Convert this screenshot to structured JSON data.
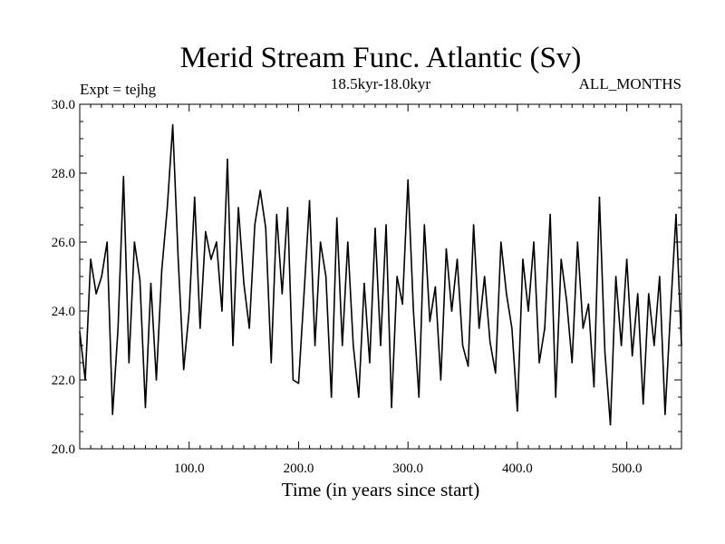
{
  "chart_data": {
    "type": "line",
    "title": "Merid Stream Func. Atlantic (Sv)",
    "subtitle": "18.5kyr-18.0kyr",
    "left_label": "Expt = tejhg",
    "right_label": "ALL_MONTHS",
    "xlabel": "Time (in years since start)",
    "ylabel": "",
    "xlim": [
      0,
      550
    ],
    "ylim": [
      20,
      30
    ],
    "x_ticks": [
      100,
      200,
      300,
      400,
      500
    ],
    "x_tick_labels": [
      "100.0",
      "200.0",
      "300.0",
      "400.0",
      "500.0"
    ],
    "y_ticks": [
      20,
      22,
      24,
      26,
      28,
      30
    ],
    "y_tick_labels": [
      "20.0",
      "22.0",
      "24.0",
      "26.0",
      "28.0",
      "30.0"
    ],
    "grid": false,
    "line_color": "#000000",
    "series": [
      {
        "name": "Merid Stream Func. Atlantic",
        "x": [
          0,
          5,
          10,
          15,
          20,
          25,
          30,
          35,
          40,
          45,
          50,
          55,
          60,
          65,
          70,
          75,
          80,
          85,
          90,
          95,
          100,
          105,
          110,
          115,
          120,
          125,
          130,
          135,
          140,
          145,
          150,
          155,
          160,
          165,
          170,
          175,
          180,
          185,
          190,
          195,
          200,
          205,
          210,
          215,
          220,
          225,
          230,
          235,
          240,
          245,
          250,
          255,
          260,
          265,
          270,
          275,
          280,
          285,
          290,
          295,
          300,
          305,
          310,
          315,
          320,
          325,
          330,
          335,
          340,
          345,
          350,
          355,
          360,
          365,
          370,
          375,
          380,
          385,
          390,
          395,
          400,
          405,
          410,
          415,
          420,
          425,
          430,
          435,
          440,
          445,
          450,
          455,
          460,
          465,
          470,
          475,
          480,
          485,
          490,
          495,
          500,
          505,
          510,
          515,
          520,
          525,
          530,
          535,
          540,
          545,
          550
        ],
        "values": [
          23.4,
          22.0,
          25.5,
          24.5,
          25.0,
          26.0,
          21.0,
          23.5,
          27.9,
          22.5,
          26.0,
          24.9,
          21.2,
          24.8,
          22.0,
          25.2,
          27.0,
          29.4,
          25.5,
          22.3,
          24.0,
          27.3,
          23.5,
          26.3,
          25.5,
          26.0,
          24.0,
          28.4,
          23.0,
          27.0,
          24.8,
          23.5,
          26.5,
          27.5,
          26.4,
          22.5,
          26.8,
          24.5,
          27.0,
          22.0,
          21.9,
          24.5,
          27.2,
          23.0,
          26.0,
          25.0,
          21.5,
          26.7,
          23.0,
          26.0,
          23.0,
          21.5,
          24.8,
          22.5,
          26.4,
          23.0,
          26.5,
          21.2,
          25.0,
          24.2,
          27.8,
          24.0,
          21.5,
          26.5,
          23.7,
          24.7,
          22.0,
          25.8,
          24.0,
          25.5,
          23.0,
          22.4,
          26.5,
          23.5,
          25.0,
          23.1,
          22.2,
          26.0,
          24.5,
          23.5,
          21.1,
          25.5,
          24.0,
          26.0,
          22.5,
          23.5,
          26.8,
          21.5,
          25.5,
          24.3,
          22.5,
          26.0,
          23.5,
          24.2,
          21.8,
          27.3,
          22.8,
          20.7,
          25.0,
          23.0,
          25.5,
          22.7,
          24.5,
          21.3,
          24.5,
          23.0,
          25.0,
          21.0,
          24.0,
          26.8,
          23.0
        ]
      }
    ]
  }
}
